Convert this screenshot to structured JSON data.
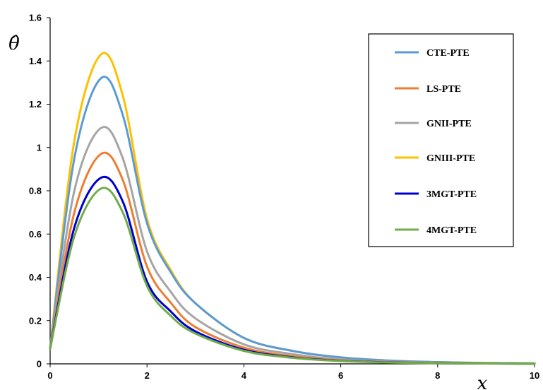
{
  "chart_data": {
    "type": "line",
    "xlabel": "x",
    "ylabel": "θ̂",
    "xlim": [
      0,
      10
    ],
    "ylim": [
      0,
      1.6
    ],
    "x_ticks": [
      "0",
      "2",
      "4",
      "6",
      "8",
      "10"
    ],
    "y_ticks": [
      "0",
      "0.2",
      "0.4",
      "0.6",
      "0.8",
      "1",
      "1.2",
      "1.4",
      "1.6"
    ],
    "grid": false,
    "legend_position": "top-right",
    "x": [
      0,
      0.5,
      1.05,
      1.5,
      2,
      2.5,
      3,
      4,
      5,
      6,
      7,
      8,
      9,
      10
    ],
    "series": [
      {
        "name": "CTE-PTE",
        "color": "#5B9BD5",
        "values": [
          0.07,
          0.95,
          1.32,
          1.15,
          0.65,
          0.42,
          0.28,
          0.12,
          0.06,
          0.03,
          0.015,
          0.008,
          0.004,
          0.002
        ]
      },
      {
        "name": "LS-PTE",
        "color": "#ED7D31",
        "values": [
          0.07,
          0.7,
          0.97,
          0.85,
          0.45,
          0.28,
          0.17,
          0.075,
          0.035,
          0.016,
          0.008,
          0.004,
          0.002,
          0.001
        ]
      },
      {
        "name": "GNII-PTE",
        "color": "#A5A5A5",
        "values": [
          0.07,
          0.8,
          1.09,
          0.95,
          0.52,
          0.33,
          0.21,
          0.09,
          0.045,
          0.02,
          0.01,
          0.005,
          0.0025,
          0.001
        ]
      },
      {
        "name": "GNIII-PTE",
        "color": "#FFC000",
        "values": [
          0.07,
          1.03,
          1.43,
          1.24,
          0.67,
          0.43,
          0.28,
          0.12,
          0.06,
          0.03,
          0.015,
          0.008,
          0.004,
          0.002
        ]
      },
      {
        "name": "3MGT-PTE",
        "color": "#0000CC",
        "values": [
          0.07,
          0.63,
          0.86,
          0.75,
          0.38,
          0.24,
          0.15,
          0.065,
          0.03,
          0.014,
          0.007,
          0.003,
          0.0015,
          0.001
        ]
      },
      {
        "name": "4MGT-PTE",
        "color": "#70AD47",
        "values": [
          0.07,
          0.59,
          0.81,
          0.7,
          0.36,
          0.22,
          0.14,
          0.06,
          0.028,
          0.013,
          0.006,
          0.003,
          0.0015,
          0.001
        ]
      }
    ],
    "draw_order": [
      3,
      0,
      2,
      1,
      4,
      5
    ]
  }
}
